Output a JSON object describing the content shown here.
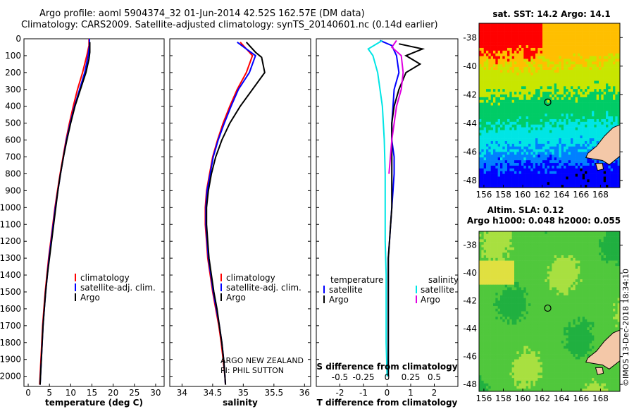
{
  "title": {
    "line1": "Argo profile: aoml 5904374_32 01-Jun-2014 42.52S 162.57E (DM data)",
    "line2": "Climatology: CARS2009. Satellite-adjusted climatology: synTS_20140601.nc (0.14d earlier)"
  },
  "stamp": "©IMOS 13-Dec-2018 18:34:10",
  "colors": {
    "climatology": "#ff0000",
    "satellite": "#0000ff",
    "argo": "#000000",
    "sal_satellite": "#00e5e5",
    "sal_argo": "#e000e0",
    "land": "#f4c8a8"
  },
  "chart_data": [
    {
      "type": "line",
      "xlabel": "temperature (deg C)",
      "ylabel": "",
      "xlim": [
        -1,
        32
      ],
      "ylim": [
        2060,
        0
      ],
      "xticks": [
        0,
        5,
        10,
        15,
        20,
        25,
        30
      ],
      "yticks": [
        0,
        100,
        200,
        300,
        400,
        500,
        600,
        700,
        800,
        900,
        1000,
        1100,
        1200,
        1300,
        1400,
        1500,
        1600,
        1700,
        1800,
        1900,
        2000
      ],
      "legend": [
        "climatology",
        "satellite-adj. clim.",
        "Argo"
      ],
      "series": [
        {
          "name": "climatology",
          "color": "#ff0000",
          "points": [
            [
              14.3,
              0
            ],
            [
              14.3,
              40
            ],
            [
              13.8,
              100
            ],
            [
              12.8,
              200
            ],
            [
              11.6,
              300
            ],
            [
              10.6,
              400
            ],
            [
              9.7,
              500
            ],
            [
              8.9,
              600
            ],
            [
              8.2,
              700
            ],
            [
              7.5,
              800
            ],
            [
              6.9,
              900
            ],
            [
              6.3,
              1000
            ],
            [
              5.8,
              1100
            ],
            [
              5.3,
              1200
            ],
            [
              4.8,
              1300
            ],
            [
              4.4,
              1400
            ],
            [
              4.0,
              1500
            ],
            [
              3.7,
              1600
            ],
            [
              3.4,
              1700
            ],
            [
              3.2,
              1800
            ],
            [
              3.0,
              1900
            ],
            [
              2.8,
              2000
            ],
            [
              2.7,
              2050
            ]
          ]
        },
        {
          "name": "satellite-adj. clim.",
          "color": "#0000ff",
          "points": [
            [
              14.4,
              0
            ],
            [
              14.4,
              40
            ],
            [
              14.1,
              100
            ],
            [
              13.3,
              200
            ],
            [
              12.1,
              300
            ],
            [
              10.9,
              400
            ],
            [
              9.9,
              500
            ],
            [
              9.0,
              600
            ],
            [
              8.3,
              700
            ],
            [
              7.6,
              800
            ],
            [
              7.0,
              900
            ],
            [
              6.4,
              1000
            ],
            [
              5.9,
              1100
            ],
            [
              5.4,
              1200
            ],
            [
              4.9,
              1300
            ],
            [
              4.5,
              1400
            ],
            [
              4.1,
              1500
            ],
            [
              3.8,
              1600
            ],
            [
              3.5,
              1700
            ],
            [
              3.3,
              1800
            ],
            [
              3.1,
              1900
            ],
            [
              2.9,
              2000
            ],
            [
              2.8,
              2050
            ]
          ]
        },
        {
          "name": "Argo",
          "color": "#000000",
          "points": [
            [
              14.5,
              20
            ],
            [
              14.5,
              80
            ],
            [
              14.3,
              120
            ],
            [
              13.6,
              200
            ],
            [
              12.3,
              300
            ],
            [
              11.0,
              400
            ],
            [
              10.0,
              500
            ],
            [
              9.1,
              600
            ],
            [
              8.3,
              700
            ],
            [
              7.6,
              800
            ],
            [
              7.0,
              900
            ],
            [
              6.5,
              1000
            ],
            [
              6.0,
              1100
            ],
            [
              5.5,
              1200
            ],
            [
              5.0,
              1300
            ],
            [
              4.5,
              1400
            ],
            [
              4.1,
              1500
            ],
            [
              3.8,
              1600
            ],
            [
              3.5,
              1700
            ],
            [
              3.3,
              1800
            ],
            [
              3.1,
              1900
            ],
            [
              2.9,
              2000
            ],
            [
              2.8,
              2050
            ]
          ]
        }
      ]
    },
    {
      "type": "line",
      "xlabel": "salinity",
      "ylabel": "",
      "xlim": [
        33.8,
        36.1
      ],
      "ylim": [
        2060,
        0
      ],
      "xticks": [
        34,
        34.5,
        35,
        35.5,
        36
      ],
      "xticklabels": [
        "34",
        "34.5",
        "35",
        "35.5",
        "36"
      ],
      "legend": [
        "climatology",
        "satellite-adj. clim.",
        "Argo"
      ],
      "annotation": [
        "ARGO NEW ZEALAND",
        "PI: PHIL SUTTON"
      ],
      "series": [
        {
          "name": "climatology",
          "color": "#ff0000",
          "points": [
            [
              34.95,
              20
            ],
            [
              35.1,
              80
            ],
            [
              35.15,
              100
            ],
            [
              35.05,
              200
            ],
            [
              34.9,
              300
            ],
            [
              34.78,
              400
            ],
            [
              34.67,
              500
            ],
            [
              34.58,
              600
            ],
            [
              34.5,
              700
            ],
            [
              34.45,
              800
            ],
            [
              34.4,
              900
            ],
            [
              34.38,
              1000
            ],
            [
              34.38,
              1100
            ],
            [
              34.4,
              1200
            ],
            [
              34.42,
              1300
            ],
            [
              34.46,
              1400
            ],
            [
              34.5,
              1500
            ],
            [
              34.55,
              1600
            ],
            [
              34.6,
              1700
            ],
            [
              34.64,
              1800
            ],
            [
              34.67,
              1900
            ],
            [
              34.7,
              2000
            ],
            [
              34.71,
              2050
            ]
          ]
        },
        {
          "name": "satellite-adj. clim.",
          "color": "#0000ff",
          "points": [
            [
              34.9,
              20
            ],
            [
              35.05,
              60
            ],
            [
              35.2,
              100
            ],
            [
              35.1,
              200
            ],
            [
              34.92,
              300
            ],
            [
              34.8,
              400
            ],
            [
              34.69,
              500
            ],
            [
              34.59,
              600
            ],
            [
              34.51,
              700
            ],
            [
              34.46,
              800
            ],
            [
              34.41,
              900
            ],
            [
              34.39,
              1000
            ],
            [
              34.39,
              1100
            ],
            [
              34.41,
              1200
            ],
            [
              34.43,
              1300
            ],
            [
              34.47,
              1400
            ],
            [
              34.51,
              1500
            ],
            [
              34.56,
              1600
            ],
            [
              34.61,
              1700
            ],
            [
              34.65,
              1800
            ],
            [
              34.68,
              1900
            ],
            [
              34.7,
              2000
            ],
            [
              34.71,
              2050
            ]
          ]
        },
        {
          "name": "Argo",
          "color": "#000000",
          "points": [
            [
              35.05,
              20
            ],
            [
              35.2,
              80
            ],
            [
              35.3,
              110
            ],
            [
              35.35,
              200
            ],
            [
              35.15,
              300
            ],
            [
              34.95,
              400
            ],
            [
              34.78,
              500
            ],
            [
              34.65,
              600
            ],
            [
              34.55,
              700
            ],
            [
              34.48,
              800
            ],
            [
              34.43,
              900
            ],
            [
              34.4,
              1000
            ],
            [
              34.4,
              1100
            ],
            [
              34.42,
              1200
            ],
            [
              34.44,
              1300
            ],
            [
              34.48,
              1400
            ],
            [
              34.52,
              1500
            ],
            [
              34.57,
              1600
            ],
            [
              34.61,
              1700
            ],
            [
              34.65,
              1800
            ],
            [
              34.68,
              1900
            ],
            [
              34.7,
              2000
            ],
            [
              34.71,
              2050
            ]
          ]
        }
      ]
    },
    {
      "type": "line",
      "xlabel": "T difference from climatology",
      "xlabel_top": "S difference from climatology",
      "ylabel": "",
      "xlim": [
        -3,
        3
      ],
      "ylim": [
        2060,
        0
      ],
      "xticks": [
        -2,
        -1,
        0,
        1,
        2
      ],
      "top_xticks": [
        -0.5,
        -0.25,
        0,
        0.25,
        0.5
      ],
      "top_xticklabels": [
        "-0.5",
        "-0.25",
        "0",
        "0.25",
        "0.5"
      ],
      "top_xlim": [
        -0.75,
        0.75
      ],
      "legend_left_title": "temperature",
      "legend_right_title": "salinity",
      "legend_left": [
        "satellite",
        "Argo"
      ],
      "legend_right": [
        "satellite",
        "Argo"
      ],
      "series": [
        {
          "name": "satellite",
          "color": "#0000ff",
          "axis": "T",
          "points": [
            [
              -0.3,
              10
            ],
            [
              0.2,
              40
            ],
            [
              0.4,
              100
            ],
            [
              0.5,
              200
            ],
            [
              0.3,
              300
            ],
            [
              0.25,
              400
            ],
            [
              0.2,
              500
            ],
            [
              0.2,
              600
            ],
            [
              0.3,
              700
            ],
            [
              0.3,
              800
            ],
            [
              0.25,
              900
            ],
            [
              0.2,
              1000
            ],
            [
              0.15,
              1100
            ],
            [
              0.1,
              1200
            ],
            [
              0.05,
              1300
            ],
            [
              0.05,
              1400
            ],
            [
              0.05,
              1500
            ],
            [
              0.05,
              1600
            ],
            [
              0.05,
              1700
            ],
            [
              0.05,
              1800
            ],
            [
              0.05,
              1900
            ],
            [
              0.05,
              2000
            ]
          ]
        },
        {
          "name": "Argo",
          "color": "#000000",
          "axis": "T",
          "points": [
            [
              0.5,
              30
            ],
            [
              1.5,
              60
            ],
            [
              0.8,
              100
            ],
            [
              1.4,
              150
            ],
            [
              0.8,
              200
            ],
            [
              0.5,
              300
            ],
            [
              0.3,
              400
            ],
            [
              0.2,
              500
            ],
            [
              0.2,
              600
            ],
            [
              0.2,
              700
            ],
            [
              0.2,
              800
            ],
            [
              0.2,
              900
            ],
            [
              0.2,
              1000
            ],
            [
              0.15,
              1100
            ],
            [
              0.1,
              1200
            ],
            [
              0.05,
              1300
            ],
            [
              0.05,
              1400
            ],
            [
              0.05,
              1500
            ],
            [
              0.05,
              1600
            ],
            [
              0.05,
              1700
            ],
            [
              0.05,
              1800
            ],
            [
              0.05,
              1900
            ],
            [
              0.05,
              2000
            ]
          ]
        },
        {
          "name": "satellite",
          "color": "#00e5e5",
          "axis": "S",
          "points": [
            [
              -0.05,
              10
            ],
            [
              -0.2,
              60
            ],
            [
              -0.15,
              100
            ],
            [
              -0.1,
              200
            ],
            [
              -0.05,
              400
            ],
            [
              -0.03,
              600
            ],
            [
              -0.02,
              800
            ],
            [
              -0.02,
              1000
            ],
            [
              -0.02,
              1200
            ],
            [
              -0.01,
              1400
            ],
            [
              -0.01,
              1600
            ],
            [
              -0.01,
              1800
            ],
            [
              0,
              2000
            ]
          ]
        },
        {
          "name": "Argo",
          "color": "#e000e0",
          "axis": "S",
          "points": [
            [
              0.1,
              10
            ],
            [
              0.05,
              50
            ],
            [
              0.15,
              100
            ],
            [
              0.17,
              200
            ],
            [
              0.15,
              300
            ],
            [
              0.1,
              400
            ],
            [
              0.05,
              600
            ],
            [
              0.02,
              800
            ]
          ]
        }
      ]
    },
    {
      "type": "heatmap",
      "title": "sat. SST: 14.2 Argo: 14.1",
      "xlim": [
        155.5,
        170
      ],
      "ylim": [
        -48.5,
        -37
      ],
      "xticks": [
        156,
        158,
        160,
        162,
        164,
        166,
        168
      ],
      "yticks": [
        -38,
        -40,
        -42,
        -44,
        -46,
        -48
      ],
      "marker": {
        "lon": 162.57,
        "lat": -42.52
      }
    },
    {
      "type": "heatmap",
      "title": "Altim. SLA: 0.12",
      "subtitle": "Argo h1000: 0.048 h2000: 0.055",
      "xlim": [
        155.5,
        170
      ],
      "ylim": [
        -48.5,
        -37
      ],
      "xticks": [
        156,
        158,
        160,
        162,
        164,
        166,
        168
      ],
      "yticks": [
        -38,
        -40,
        -42,
        -44,
        -46,
        -48
      ],
      "marker": {
        "lon": 162.57,
        "lat": -42.52
      }
    }
  ]
}
